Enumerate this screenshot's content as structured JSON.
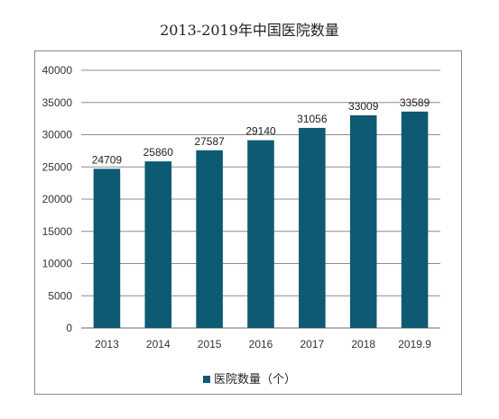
{
  "chart_data": {
    "type": "bar",
    "title": "2013-2019年中国医院数量",
    "categories": [
      "2013",
      "2014",
      "2015",
      "2016",
      "2017",
      "2018",
      "2019.9"
    ],
    "series": [
      {
        "name": "医院数量（个）",
        "values": [
          24709,
          25860,
          27587,
          29140,
          31056,
          33009,
          33589
        ]
      }
    ],
    "data_labels": [
      "24709",
      "25860",
      "27587",
      "29140",
      "31056",
      "33009",
      "33589"
    ],
    "y_ticks": [
      "0",
      "5000",
      "10000",
      "15000",
      "20000",
      "25000",
      "30000",
      "35000",
      "40000"
    ],
    "ylim": [
      0,
      40000
    ],
    "grid": true,
    "legend_position": "bottom",
    "bar_color": "#0e5a72"
  }
}
